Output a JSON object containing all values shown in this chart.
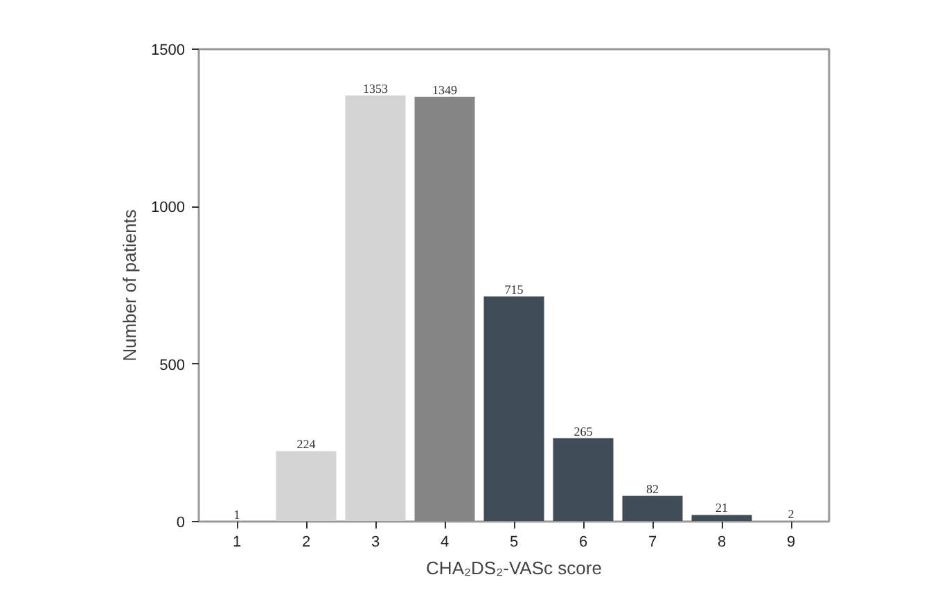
{
  "chart_data": {
    "type": "bar",
    "xlabel": "CHA₂DS₂-VASc score",
    "ylabel": "Number of patients",
    "categories": [
      "1",
      "2",
      "3",
      "4",
      "5",
      "6",
      "7",
      "8",
      "9"
    ],
    "values": [
      1,
      224,
      1353,
      1349,
      715,
      265,
      82,
      21,
      2
    ],
    "colors": [
      "#d4d4d4",
      "#d4d4d4",
      "#d4d4d4",
      "#858585",
      "#414d56",
      "#414d56",
      "#414d56",
      "#414d56",
      "#414d56"
    ],
    "ylim": [
      0,
      1500
    ],
    "yticks": [
      0,
      500,
      1000,
      1500
    ],
    "grid": false,
    "data_labels": true
  }
}
